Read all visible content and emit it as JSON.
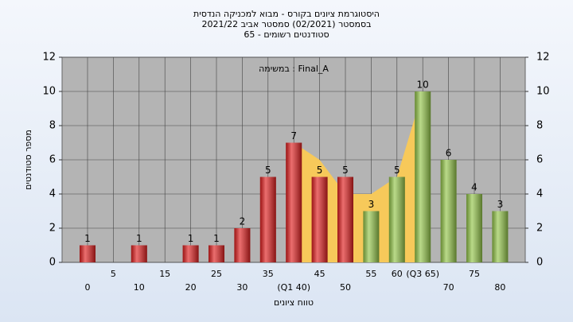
{
  "chart_data": {
    "type": "bar",
    "title_lines": [
      "היסטוגרמת ציונים בקורס - מבוא למכניקה הנדסית",
      "בסמסטר  (02/2021)  סמסטר אביב 2021/22",
      "סטודנטים רשומים - 65"
    ],
    "annotation": "במשימה : Final_A",
    "y_label": "מספר סטודנטים",
    "x_label": "טווח ציונים",
    "categories": [
      "0",
      "5",
      "10",
      "15",
      "20",
      "25",
      "30",
      "35",
      "(Q1 40)",
      "45",
      "50",
      "55",
      "60",
      "(Q3 65)",
      "70",
      "75",
      "80"
    ],
    "values": [
      1,
      0,
      1,
      0,
      1,
      1,
      2,
      5,
      7,
      5,
      5,
      3,
      5,
      10,
      6,
      4,
      3
    ],
    "colors": [
      "#e02020",
      "#e02020",
      "#e02020",
      "#e02020",
      "#e02020",
      "#e02020",
      "#e02020",
      "#e02020",
      "#e02020",
      "#e02020",
      "#e02020",
      "#94c64a",
      "#94c64a",
      "#94c64a",
      "#94c64a",
      "#94c64a",
      "#94c64a"
    ],
    "area_values": [
      null,
      null,
      null,
      null,
      null,
      null,
      null,
      null,
      7,
      6,
      4,
      4,
      5,
      10,
      null,
      null,
      null
    ],
    "area_color": "#f7c95a",
    "ylim": [
      0,
      12
    ],
    "yticks": [
      0,
      2,
      4,
      6,
      8,
      10,
      12
    ],
    "grid": true
  }
}
